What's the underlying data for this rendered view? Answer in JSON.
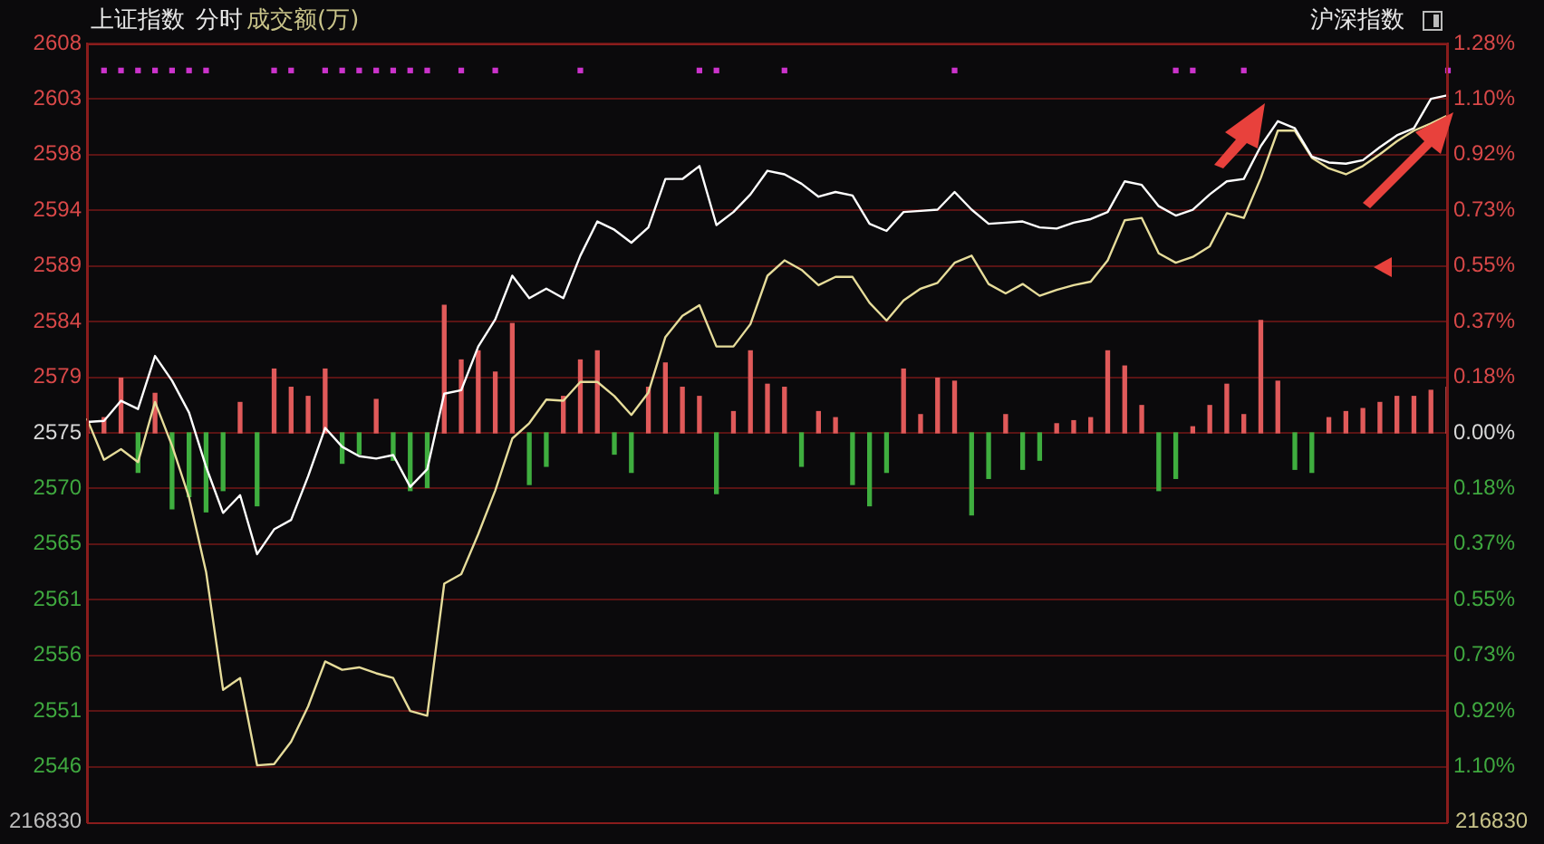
{
  "chart_data": {
    "type": "line",
    "title": "上证指数",
    "annotations": [
      "分时",
      "成交额(万)",
      "沪深指数",
      "216830",
      "216830"
    ],
    "categories": [
      null,
      null,
      null,
      null,
      null,
      null,
      null,
      null,
      null,
      null,
      null,
      null,
      null,
      null,
      null,
      null,
      null,
      null,
      null,
      null,
      null,
      null,
      null,
      null,
      null,
      null,
      null,
      null,
      null,
      null,
      null,
      null,
      null,
      null,
      null,
      null,
      null,
      null,
      null,
      null,
      null,
      null,
      null,
      null,
      null,
      null,
      null,
      null,
      null,
      null,
      null,
      null,
      null,
      null,
      null,
      null,
      null,
      null,
      null,
      null,
      null,
      null,
      null,
      null,
      null,
      null,
      null,
      null,
      null,
      null,
      null,
      null,
      null,
      null,
      null,
      null,
      null,
      null,
      null,
      null,
      null
    ],
    "ylim": [
      2541.77,
      2607.79
    ],
    "yticks": [
      {
        "value": 2607.79,
        "label": "2608"
      },
      {
        "value": 2603.08,
        "label": "2603"
      },
      {
        "value": 2598.36,
        "label": "2598"
      },
      {
        "value": 2593.64,
        "label": "2594"
      },
      {
        "value": 2588.93,
        "label": "2589"
      },
      {
        "value": 2584.21,
        "label": "2584"
      },
      {
        "value": 2579.5,
        "label": "2579"
      },
      {
        "value": 2574.78,
        "label": "2575"
      },
      {
        "value": 2570.06,
        "label": "2570"
      },
      {
        "value": 2565.35,
        "label": "2565"
      },
      {
        "value": 2560.63,
        "label": "2561"
      },
      {
        "value": 2555.92,
        "label": "2556"
      },
      {
        "value": 2551.2,
        "label": "2551"
      },
      {
        "value": 2546.48,
        "label": "2546"
      }
    ],
    "y2lim": [
      -1.282,
      1.282
    ],
    "y2ticks": [
      {
        "value": 1.282,
        "label": "1.28%"
      },
      {
        "value": 1.099,
        "label": "1.10%"
      },
      {
        "value": 0.916,
        "label": "0.92%"
      },
      {
        "value": 0.733,
        "label": "0.73%"
      },
      {
        "value": 0.549,
        "label": "0.55%"
      },
      {
        "value": 0.366,
        "label": "0.37%"
      },
      {
        "value": 0.183,
        "label": "0.18%"
      },
      {
        "value": 0,
        "label": "0.00%"
      },
      {
        "value": -0.183,
        "label": "0.18%"
      },
      {
        "value": -0.366,
        "label": "0.37%"
      },
      {
        "value": -0.549,
        "label": "0.55%"
      },
      {
        "value": -0.733,
        "label": "0.73%"
      },
      {
        "value": -0.916,
        "label": "0.92%"
      },
      {
        "value": -1.099,
        "label": "1.10%"
      }
    ],
    "grid": "y",
    "series": [
      {
        "type": "bar",
        "axis": "y2",
        "values": [
          0.02,
          0.05,
          0.18,
          -0.13,
          0.13,
          -0.25,
          -0.21,
          -0.26,
          -0.19,
          0.1,
          -0.24,
          0.21,
          0.15,
          0.12,
          0.21,
          -0.1,
          -0.07,
          0.11,
          -0.09,
          -0.19,
          -0.18,
          0.42,
          0.24,
          0.27,
          0.2,
          0.36,
          -0.17,
          -0.11,
          0.12,
          0.24,
          0.27,
          -0.07,
          -0.13,
          0.15,
          0.23,
          0.15,
          0.12,
          -0.2,
          0.07,
          0.27,
          0.16,
          0.15,
          -0.11,
          0.07,
          0.05,
          -0.17,
          -0.24,
          -0.13,
          0.21,
          0.06,
          0.18,
          0.17,
          -0.27,
          -0.15,
          0.06,
          -0.12,
          -0.09,
          0.03,
          0.04,
          0.05,
          0.27,
          0.22,
          0.09,
          -0.19,
          -0.15,
          0.02,
          0.09,
          0.16,
          0.06,
          0.37,
          0.17,
          -0.12,
          -0.13,
          0.05,
          0.07,
          0.08,
          0.1,
          0.12,
          0.12,
          0.14,
          0.15
        ],
        "colors": [
          "#e05a5a",
          "#e05a5a",
          "#e05a5a",
          "#3fae3f",
          "#e05a5a",
          "#3fae3f",
          "#3fae3f",
          "#3fae3f",
          "#3fae3f",
          "#e05a5a",
          "#3fae3f",
          "#e05a5a",
          "#e05a5a",
          "#e05a5a",
          "#e05a5a",
          "#3fae3f",
          "#3fae3f",
          "#e05a5a",
          "#3fae3f",
          "#3fae3f",
          "#3fae3f",
          "#e05a5a",
          "#e05a5a",
          "#e05a5a",
          "#e05a5a",
          "#e05a5a",
          "#3fae3f",
          "#3fae3f",
          "#e05a5a",
          "#e05a5a",
          "#e05a5a",
          "#3fae3f",
          "#3fae3f",
          "#e05a5a",
          "#e05a5a",
          "#e05a5a",
          "#e05a5a",
          "#3fae3f",
          "#e05a5a",
          "#e05a5a",
          "#e05a5a",
          "#e05a5a",
          "#3fae3f",
          "#e05a5a",
          "#e05a5a",
          "#3fae3f",
          "#3fae3f",
          "#3fae3f",
          "#e05a5a",
          "#e05a5a",
          "#e05a5a",
          "#e05a5a",
          "#3fae3f",
          "#3fae3f",
          "#e05a5a",
          "#3fae3f",
          "#3fae3f",
          "#e05a5a",
          "#e05a5a",
          "#e05a5a",
          "#e05a5a",
          "#e05a5a",
          "#e05a5a",
          "#3fae3f",
          "#3fae3f",
          "#e05a5a",
          "#e05a5a",
          "#e05a5a",
          "#e05a5a",
          "#e05a5a",
          "#e05a5a",
          "#3fae3f",
          "#3fae3f",
          "#e05a5a",
          "#e05a5a",
          "#e05a5a",
          "#e05a5a",
          "#e05a5a",
          "#e05a5a",
          "#e05a5a",
          "#e05a5a"
        ]
      },
      {
        "color": "#ffffff",
        "values": [
          2575.7,
          2575.8,
          2577.5,
          2576.8,
          2581.3,
          2579.2,
          2576.5,
          2571.9,
          2568.0,
          2569.5,
          2564.5,
          2566.6,
          2567.4,
          2571.1,
          2575.2,
          2573.6,
          2572.8,
          2572.6,
          2572.9,
          2570.2,
          2571.7,
          2578.1,
          2578.4,
          2582.1,
          2584.4,
          2588.1,
          2586.2,
          2587.0,
          2586.2,
          2589.8,
          2592.7,
          2592.0,
          2590.9,
          2592.2,
          2596.3,
          2596.3,
          2597.4,
          2592.4,
          2593.5,
          2595.0,
          2597.0,
          2596.7,
          2595.9,
          2594.8,
          2595.2,
          2594.9,
          2592.5,
          2591.9,
          2593.5,
          2593.6,
          2593.7,
          2595.2,
          2593.7,
          2592.5,
          2592.6,
          2592.7,
          2592.2,
          2592.1,
          2592.6,
          2592.9,
          2593.5,
          2596.1,
          2595.8,
          2594.0,
          2593.2,
          2593.7,
          2595.0,
          2596.1,
          2596.3,
          2599.1,
          2601.2,
          2600.6,
          2598.2,
          2597.7,
          2597.6,
          2597.9,
          2599.0,
          2600.0,
          2600.6,
          2603.1,
          2603.4
        ]
      },
      {
        "color": "#e6dc9a",
        "values": [
          2576.0,
          2572.5,
          2573.4,
          2572.3,
          2577.4,
          2573.7,
          2569.3,
          2563.0,
          2553.0,
          2554.0,
          2546.6,
          2546.7,
          2548.6,
          2551.6,
          2555.4,
          2554.7,
          2554.9,
          2554.4,
          2554.0,
          2551.2,
          2550.8,
          2562.0,
          2562.8,
          2566.2,
          2569.9,
          2574.3,
          2575.6,
          2577.6,
          2577.5,
          2579.1,
          2579.1,
          2577.9,
          2576.3,
          2578.2,
          2582.9,
          2584.7,
          2585.6,
          2582.1,
          2582.1,
          2584.0,
          2588.1,
          2589.4,
          2588.6,
          2587.3,
          2588.0,
          2588.0,
          2585.8,
          2584.3,
          2586.0,
          2587.0,
          2587.5,
          2589.2,
          2589.8,
          2587.4,
          2586.6,
          2587.4,
          2586.4,
          2586.9,
          2587.3,
          2587.6,
          2589.4,
          2592.8,
          2593.0,
          2590.0,
          2589.2,
          2589.7,
          2590.6,
          2593.4,
          2593.0,
          2596.4,
          2600.4,
          2600.4,
          2598.1,
          2597.2,
          2596.7,
          2597.4,
          2598.4,
          2599.5,
          2600.4,
          2601.0,
          2601.7
        ]
      },
      {
        "type": "scatter",
        "marker": "square",
        "color": "#cc33cc",
        "values": [
          null,
          2605.5,
          2605.5,
          2605.5,
          2605.5,
          2605.5,
          2605.5,
          2605.5,
          null,
          null,
          null,
          2605.5,
          2605.5,
          null,
          2605.5,
          2605.5,
          2605.5,
          2605.5,
          2605.5,
          2605.5,
          2605.5,
          null,
          2605.5,
          null,
          2605.5,
          null,
          null,
          null,
          null,
          2605.5,
          null,
          null,
          null,
          null,
          null,
          null,
          2605.5,
          2605.5,
          null,
          null,
          null,
          2605.5,
          null,
          null,
          null,
          null,
          null,
          null,
          null,
          null,
          null,
          2605.5,
          null,
          null,
          null,
          null,
          null,
          null,
          null,
          null,
          null,
          null,
          null,
          null,
          2605.5,
          2605.5,
          null,
          null,
          2605.5,
          null,
          null,
          null,
          null,
          null,
          null,
          null,
          null,
          null,
          null,
          null,
          2605.5
        ]
      }
    ]
  }
}
